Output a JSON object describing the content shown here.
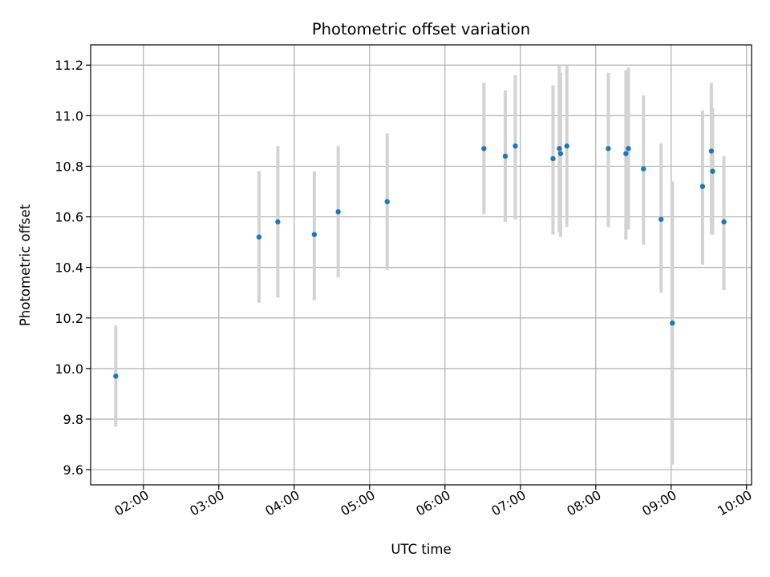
{
  "chart_data": {
    "type": "scatter",
    "title": "Photometric offset variation",
    "xlabel": "UTC time",
    "ylabel": "Photometric offset",
    "x_ticks": [
      "02:00",
      "03:00",
      "04:00",
      "05:00",
      "06:00",
      "07:00",
      "08:00",
      "09:00",
      "10:00"
    ],
    "y_ticks": [
      "9.6",
      "9.8",
      "10.0",
      "10.2",
      "10.4",
      "10.6",
      "10.8",
      "11.0",
      "11.2"
    ],
    "xlim": [
      "01:18",
      "10:04"
    ],
    "ylim": [
      9.54,
      11.28
    ],
    "grid": true,
    "colors": {
      "points": "#1f77b4",
      "errorbars": "#d3d3d3",
      "grid": "#b0b0b0"
    },
    "points": [
      {
        "x": "01:38",
        "y": 9.97,
        "ylow": 9.77,
        "yhigh": 10.17
      },
      {
        "x": "03:32",
        "y": 10.52,
        "ylow": 10.26,
        "yhigh": 10.78
      },
      {
        "x": "03:47",
        "y": 10.58,
        "ylow": 10.28,
        "yhigh": 10.88
      },
      {
        "x": "04:16",
        "y": 10.53,
        "ylow": 10.27,
        "yhigh": 10.78
      },
      {
        "x": "04:35",
        "y": 10.62,
        "ylow": 10.36,
        "yhigh": 10.88
      },
      {
        "x": "05:14",
        "y": 10.66,
        "ylow": 10.39,
        "yhigh": 10.93
      },
      {
        "x": "06:31",
        "y": 10.87,
        "ylow": 10.61,
        "yhigh": 11.13
      },
      {
        "x": "06:48",
        "y": 10.84,
        "ylow": 10.58,
        "yhigh": 11.1
      },
      {
        "x": "06:56",
        "y": 10.88,
        "ylow": 10.59,
        "yhigh": 11.16
      },
      {
        "x": "07:26",
        "y": 10.83,
        "ylow": 10.53,
        "yhigh": 11.12
      },
      {
        "x": "07:31",
        "y": 10.87,
        "ylow": 10.54,
        "yhigh": 11.2
      },
      {
        "x": "07:32",
        "y": 10.85,
        "ylow": 10.52,
        "yhigh": 11.17
      },
      {
        "x": "07:37",
        "y": 10.88,
        "ylow": 10.56,
        "yhigh": 11.2
      },
      {
        "x": "08:10",
        "y": 10.87,
        "ylow": 10.56,
        "yhigh": 11.17
      },
      {
        "x": "08:24",
        "y": 10.85,
        "ylow": 10.51,
        "yhigh": 11.18
      },
      {
        "x": "08:26",
        "y": 10.87,
        "ylow": 10.55,
        "yhigh": 11.19
      },
      {
        "x": "08:38",
        "y": 10.79,
        "ylow": 10.49,
        "yhigh": 11.08
      },
      {
        "x": "08:52",
        "y": 10.59,
        "ylow": 10.3,
        "yhigh": 10.89
      },
      {
        "x": "09:01",
        "y": 10.18,
        "ylow": 9.62,
        "yhigh": 10.74
      },
      {
        "x": "09:25",
        "y": 10.72,
        "ylow": 10.41,
        "yhigh": 11.02
      },
      {
        "x": "09:32",
        "y": 10.86,
        "ylow": 10.53,
        "yhigh": 11.13
      },
      {
        "x": "09:33",
        "y": 10.78,
        "ylow": 10.53,
        "yhigh": 11.03
      },
      {
        "x": "09:42",
        "y": 10.58,
        "ylow": 10.31,
        "yhigh": 10.84
      }
    ]
  }
}
